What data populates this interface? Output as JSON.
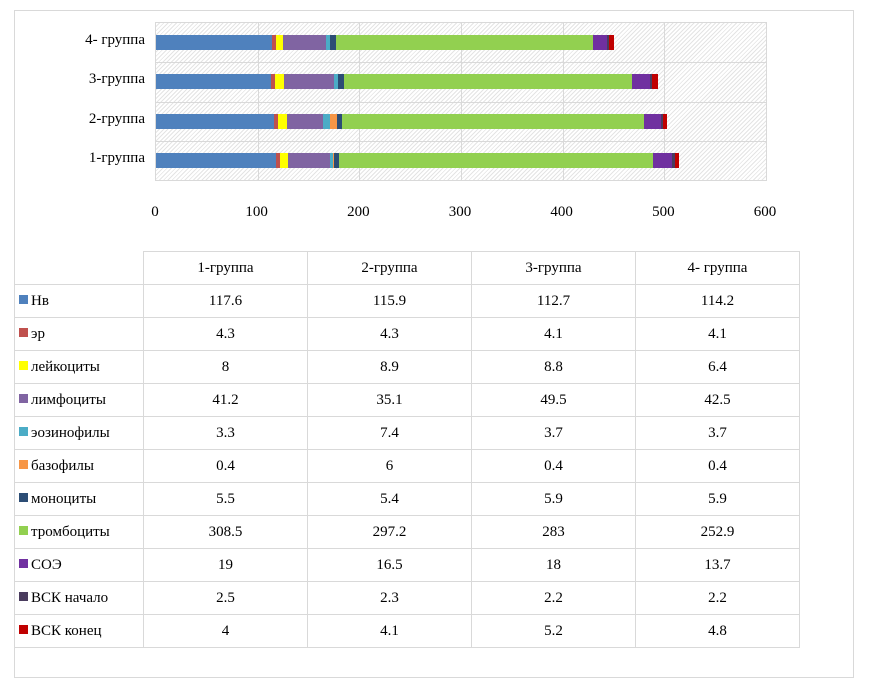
{
  "chart_data": {
    "type": "bar",
    "orientation": "horizontal",
    "stacked": true,
    "categories": [
      "1-группа",
      "2-группа",
      "3-группа",
      "4- группа"
    ],
    "xlim": [
      0,
      600
    ],
    "xticks": [
      "0",
      "100",
      "200",
      "300",
      "400",
      "500",
      "600"
    ],
    "grid": true,
    "legend": "data-table",
    "series": [
      {
        "name": "Нв",
        "color": "#4f81bd",
        "values": [
          117.6,
          115.9,
          112.7,
          114.2
        ]
      },
      {
        "name": "эр",
        "color": "#c0504d",
        "values": [
          4.3,
          4.3,
          4.1,
          4.1
        ]
      },
      {
        "name": "лейкоциты",
        "color": "#ffff00",
        "values": [
          8,
          8.9,
          8.8,
          6.4
        ]
      },
      {
        "name": "лимфоциты",
        "color": "#8064a2",
        "values": [
          41.2,
          35.1,
          49.5,
          42.5
        ]
      },
      {
        "name": "эозинофилы",
        "color": "#4bacc6",
        "values": [
          3.3,
          7.4,
          3.7,
          3.7
        ]
      },
      {
        "name": "базофилы",
        "color": "#f79646",
        "values": [
          0.4,
          6,
          0.4,
          0.4
        ]
      },
      {
        "name": "моноциты",
        "color": "#2c4d75",
        "values": [
          5.5,
          5.4,
          5.9,
          5.9
        ]
      },
      {
        "name": "тромбоциты",
        "color": "#92d050",
        "values": [
          308.5,
          297.2,
          283,
          252.9
        ]
      },
      {
        "name": "СОЭ",
        "color": "#7030a0",
        "values": [
          19,
          16.5,
          18,
          13.7
        ]
      },
      {
        "name": "ВСК начало",
        "color": "#4a3c5e",
        "values": [
          2.5,
          2.3,
          2.2,
          2.2
        ]
      },
      {
        "name": "ВСК конец",
        "color": "#c00000",
        "values": [
          4,
          4.1,
          5.2,
          4.8
        ]
      }
    ]
  }
}
